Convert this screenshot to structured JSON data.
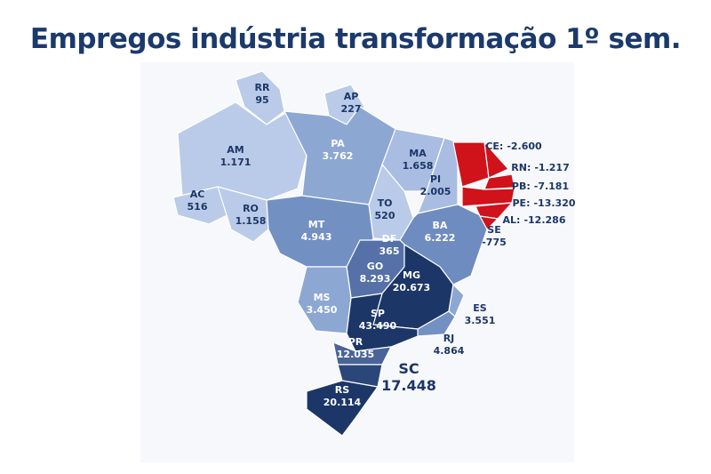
{
  "title": "Empregos indústria transformação 1º sem.",
  "states": [
    {
      "code": "RR",
      "value": "95",
      "color": "#b9cbe8"
    },
    {
      "code": "AP",
      "value": "227",
      "color": "#b9cbe8"
    },
    {
      "code": "AM",
      "value": "1.171",
      "color": "#b9cbe8"
    },
    {
      "code": "AC",
      "value": "516",
      "color": "#b9cbe8"
    },
    {
      "code": "RO",
      "value": "1.158",
      "color": "#b9cbe8"
    },
    {
      "code": "PA",
      "value": "3.762",
      "color": "#8da7d3"
    },
    {
      "code": "MA",
      "value": "1.658",
      "color": "#a9bde2"
    },
    {
      "code": "PI",
      "value": "2.005",
      "color": "#a9bde2"
    },
    {
      "code": "TO",
      "value": "520",
      "color": "#b9cbe8"
    },
    {
      "code": "MT",
      "value": "4.943",
      "color": "#7390c3"
    },
    {
      "code": "BA",
      "value": "6.222",
      "color": "#6f8cc0"
    },
    {
      "code": "DF",
      "value": "365",
      "color": "#b9cbe8"
    },
    {
      "code": "GO",
      "value": "8.293",
      "color": "#5571a7"
    },
    {
      "code": "MS",
      "value": "3.450",
      "color": "#8da7d3"
    },
    {
      "code": "MG",
      "value": "20.673",
      "color": "#1c3667"
    },
    {
      "code": "ES",
      "value": "3.551",
      "color": "#8da7d3"
    },
    {
      "code": "RJ",
      "value": "4.864",
      "color": "#7390c3"
    },
    {
      "code": "SP",
      "value": "43.490",
      "color": "#1c3667"
    },
    {
      "code": "PR",
      "value": "12.035",
      "color": "#4a6498"
    },
    {
      "code": "SC",
      "value": "17.448",
      "color": "#2b4679"
    },
    {
      "code": "RS",
      "value": "20.114",
      "color": "#1c3667"
    },
    {
      "code": "CE:",
      "value": "-2.600",
      "color": "#d0121b"
    },
    {
      "code": "RN:",
      "value": "-1.217",
      "color": "#d0121b"
    },
    {
      "code": "PB:",
      "value": "-7.181",
      "color": "#d0121b"
    },
    {
      "code": "PE:",
      "value": "-13.320",
      "color": "#d0121b"
    },
    {
      "code": "AL:",
      "value": "-12.286",
      "color": "#d0121b"
    },
    {
      "code": "SE",
      "value": "-775",
      "color": "#d0121b"
    }
  ]
}
